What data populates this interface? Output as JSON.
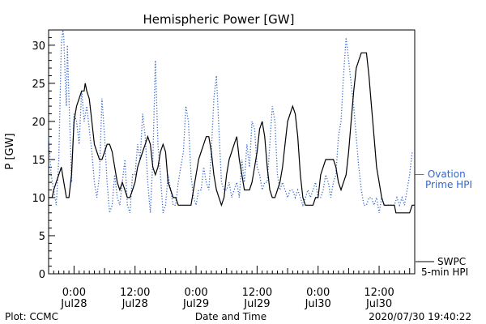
{
  "chart_data": {
    "type": "line",
    "title": "Hemispheric Power [GW]",
    "xlabel": "Date and Time",
    "ylabel": "P [GW]",
    "ylim": [
      0,
      32
    ],
    "yticks": [
      0,
      5,
      10,
      15,
      20,
      25,
      30
    ],
    "xlim_hours": [
      -5,
      67
    ],
    "x_ticks": [
      {
        "hour": 0,
        "time": "0:00",
        "date": "Jul28"
      },
      {
        "hour": 12,
        "time": "12:00",
        "date": "Jul28"
      },
      {
        "hour": 24,
        "time": "0:00",
        "date": "Jul29"
      },
      {
        "hour": 36,
        "time": "12:00",
        "date": "Jul29"
      },
      {
        "hour": 48,
        "time": "0:00",
        "date": "Jul30"
      },
      {
        "hour": 60,
        "time": "12:00",
        "date": "Jul30"
      }
    ],
    "series": [
      {
        "name": "SWPC 5-min HPI",
        "style": "solid",
        "color": "#000000",
        "points": [
          [
            -5,
            10
          ],
          [
            -4.3,
            10
          ],
          [
            -4,
            11
          ],
          [
            -3.5,
            12
          ],
          [
            -3,
            13
          ],
          [
            -2.5,
            14
          ],
          [
            -2,
            12
          ],
          [
            -1.5,
            10
          ],
          [
            -1,
            10
          ],
          [
            -0.5,
            13
          ],
          [
            0,
            20
          ],
          [
            0.5,
            22
          ],
          [
            1,
            23
          ],
          [
            1.5,
            24
          ],
          [
            2,
            24
          ],
          [
            2.2,
            25
          ],
          [
            2.5,
            24
          ],
          [
            3,
            23
          ],
          [
            3.5,
            20
          ],
          [
            4,
            17
          ],
          [
            4.5,
            16
          ],
          [
            5,
            15
          ],
          [
            5.5,
            15
          ],
          [
            6,
            16
          ],
          [
            6.5,
            17
          ],
          [
            7,
            17
          ],
          [
            7.5,
            16
          ],
          [
            8,
            14
          ],
          [
            8.5,
            12
          ],
          [
            9,
            11
          ],
          [
            9.5,
            12
          ],
          [
            10,
            11
          ],
          [
            10.5,
            10
          ],
          [
            11,
            10
          ],
          [
            11.5,
            11
          ],
          [
            12,
            12
          ],
          [
            12.5,
            14
          ],
          [
            13,
            15
          ],
          [
            13.5,
            16
          ],
          [
            14,
            17
          ],
          [
            14.5,
            18
          ],
          [
            15,
            17
          ],
          [
            15.5,
            14
          ],
          [
            16,
            13
          ],
          [
            16.5,
            14
          ],
          [
            17,
            16
          ],
          [
            17.5,
            17
          ],
          [
            18,
            16
          ],
          [
            18.5,
            12
          ],
          [
            19,
            11
          ],
          [
            19.5,
            10
          ],
          [
            20,
            10
          ],
          [
            20.5,
            9
          ],
          [
            21,
            9
          ],
          [
            22,
            9
          ],
          [
            23,
            9
          ],
          [
            23.5,
            11
          ],
          [
            24,
            13
          ],
          [
            24.5,
            15
          ],
          [
            25,
            16
          ],
          [
            25.5,
            17
          ],
          [
            26,
            18
          ],
          [
            26.5,
            18
          ],
          [
            27,
            16
          ],
          [
            27.5,
            13
          ],
          [
            28,
            11
          ],
          [
            28.5,
            10
          ],
          [
            29,
            9
          ],
          [
            29.5,
            10
          ],
          [
            30,
            13
          ],
          [
            30.5,
            15
          ],
          [
            31,
            16
          ],
          [
            31.5,
            17
          ],
          [
            32,
            18
          ],
          [
            32.5,
            15
          ],
          [
            33,
            13
          ],
          [
            33.5,
            11
          ],
          [
            34,
            11
          ],
          [
            34.5,
            11
          ],
          [
            35,
            12
          ],
          [
            35.5,
            14
          ],
          [
            36,
            16
          ],
          [
            36.5,
            19
          ],
          [
            37,
            20
          ],
          [
            37.5,
            18
          ],
          [
            38,
            14
          ],
          [
            38.5,
            11
          ],
          [
            39,
            10
          ],
          [
            39.5,
            10
          ],
          [
            40,
            11
          ],
          [
            40.5,
            12
          ],
          [
            41,
            14
          ],
          [
            41.5,
            17
          ],
          [
            42,
            20
          ],
          [
            42.5,
            21
          ],
          [
            43,
            22
          ],
          [
            43.5,
            21
          ],
          [
            44,
            18
          ],
          [
            44.5,
            13
          ],
          [
            45,
            10
          ],
          [
            45.5,
            9
          ],
          [
            46,
            9
          ],
          [
            47,
            9
          ],
          [
            47.5,
            10
          ],
          [
            48,
            10
          ],
          [
            48.5,
            13
          ],
          [
            49,
            14
          ],
          [
            49.5,
            15
          ],
          [
            50,
            15
          ],
          [
            50.5,
            15
          ],
          [
            51,
            15
          ],
          [
            51.5,
            14
          ],
          [
            52,
            12
          ],
          [
            52.5,
            11
          ],
          [
            53,
            12
          ],
          [
            53.5,
            13
          ],
          [
            54,
            16
          ],
          [
            54.5,
            20
          ],
          [
            55,
            24
          ],
          [
            55.5,
            27
          ],
          [
            56,
            28
          ],
          [
            56.5,
            29
          ],
          [
            57,
            29
          ],
          [
            57.5,
            29
          ],
          [
            58,
            26
          ],
          [
            58.5,
            22
          ],
          [
            59,
            18
          ],
          [
            59.5,
            14
          ],
          [
            60,
            12
          ],
          [
            60.5,
            10
          ],
          [
            61,
            9
          ],
          [
            62,
            9
          ],
          [
            63,
            9
          ],
          [
            63.3,
            8
          ],
          [
            64,
            8
          ],
          [
            65,
            8
          ],
          [
            66,
            8
          ],
          [
            66.5,
            9
          ],
          [
            67,
            9
          ]
        ]
      },
      {
        "name": "Ovation Prime HPI",
        "style": "dotted",
        "color": "#3366cc",
        "points": [
          [
            -5,
            18
          ],
          [
            -4.5,
            13
          ],
          [
            -4,
            11
          ],
          [
            -3.5,
            9
          ],
          [
            -3,
            15
          ],
          [
            -2.7,
            24
          ],
          [
            -2.5,
            30
          ],
          [
            -2.2,
            32
          ],
          [
            -2,
            31
          ],
          [
            -1.7,
            25
          ],
          [
            -1.5,
            22
          ],
          [
            -1.3,
            30
          ],
          [
            -1,
            23
          ],
          [
            -0.7,
            17
          ],
          [
            -0.5,
            12
          ],
          [
            0,
            21
          ],
          [
            0.5,
            20
          ],
          [
            1,
            17
          ],
          [
            1.5,
            24
          ],
          [
            2,
            20
          ],
          [
            2.5,
            22
          ],
          [
            3,
            19
          ],
          [
            3.5,
            16
          ],
          [
            4,
            12
          ],
          [
            4.5,
            10
          ],
          [
            5,
            13
          ],
          [
            5.5,
            23
          ],
          [
            6,
            18
          ],
          [
            6.5,
            12
          ],
          [
            7,
            8
          ],
          [
            7.5,
            9
          ],
          [
            8,
            13
          ],
          [
            8.5,
            10
          ],
          [
            9,
            9
          ],
          [
            9.5,
            12
          ],
          [
            10,
            15
          ],
          [
            10.5,
            9
          ],
          [
            11,
            8
          ],
          [
            11.5,
            13
          ],
          [
            12,
            13
          ],
          [
            12.5,
            17
          ],
          [
            13,
            15
          ],
          [
            13.5,
            21
          ],
          [
            14,
            18
          ],
          [
            14.5,
            12
          ],
          [
            15,
            8
          ],
          [
            15.5,
            15
          ],
          [
            16,
            28
          ],
          [
            16.5,
            17
          ],
          [
            17,
            13
          ],
          [
            17.5,
            8
          ],
          [
            18,
            9
          ],
          [
            18.5,
            13
          ],
          [
            19,
            11
          ],
          [
            19.5,
            9
          ],
          [
            20,
            9
          ],
          [
            20.5,
            12
          ],
          [
            21,
            14
          ],
          [
            21.5,
            16
          ],
          [
            22,
            22
          ],
          [
            22.5,
            20
          ],
          [
            23,
            13
          ],
          [
            23.5,
            10
          ],
          [
            24,
            9
          ],
          [
            24.5,
            11
          ],
          [
            25,
            11
          ],
          [
            25.5,
            14
          ],
          [
            26,
            12
          ],
          [
            26.5,
            11
          ],
          [
            27,
            16
          ],
          [
            27.5,
            23
          ],
          [
            28,
            26
          ],
          [
            28.5,
            19
          ],
          [
            29,
            12
          ],
          [
            29.5,
            11
          ],
          [
            30,
            11
          ],
          [
            30.5,
            12
          ],
          [
            31,
            10
          ],
          [
            31.5,
            11
          ],
          [
            32,
            12
          ],
          [
            32.5,
            10
          ],
          [
            33,
            15
          ],
          [
            33.5,
            12
          ],
          [
            34,
            17
          ],
          [
            34.5,
            14
          ],
          [
            35,
            20
          ],
          [
            35.5,
            19
          ],
          [
            36,
            14
          ],
          [
            36.5,
            13
          ],
          [
            37,
            11
          ],
          [
            37.5,
            12
          ],
          [
            38,
            12
          ],
          [
            38.5,
            17
          ],
          [
            39,
            22
          ],
          [
            39.5,
            20
          ],
          [
            40,
            13
          ],
          [
            40.5,
            11
          ],
          [
            41,
            12
          ],
          [
            41.5,
            11
          ],
          [
            42,
            10
          ],
          [
            42.5,
            11
          ],
          [
            43,
            11
          ],
          [
            43.5,
            10
          ],
          [
            44,
            11
          ],
          [
            44.5,
            10
          ],
          [
            45,
            9
          ],
          [
            45.5,
            10
          ],
          [
            46,
            11
          ],
          [
            46.5,
            10
          ],
          [
            47,
            11
          ],
          [
            47.5,
            12
          ],
          [
            48,
            10
          ],
          [
            48.5,
            10
          ],
          [
            49,
            11
          ],
          [
            49.5,
            13
          ],
          [
            50,
            12
          ],
          [
            50.5,
            10
          ],
          [
            51,
            12
          ],
          [
            51.5,
            13
          ],
          [
            52,
            18
          ],
          [
            52.5,
            20
          ],
          [
            53,
            26
          ],
          [
            53.5,
            31
          ],
          [
            54,
            28
          ],
          [
            54.5,
            25
          ],
          [
            55,
            22
          ],
          [
            55.5,
            18
          ],
          [
            56,
            14
          ],
          [
            56.5,
            11
          ],
          [
            57,
            9
          ],
          [
            57.5,
            9
          ],
          [
            58,
            10
          ],
          [
            58.5,
            10
          ],
          [
            59,
            9
          ],
          [
            59.5,
            10
          ],
          [
            60,
            8
          ],
          [
            60.5,
            10
          ],
          [
            61,
            9
          ],
          [
            62,
            9
          ],
          [
            63,
            9
          ],
          [
            63.5,
            10
          ],
          [
            64,
            9
          ],
          [
            64.5,
            10
          ],
          [
            65,
            9
          ],
          [
            65.5,
            11
          ],
          [
            66,
            13
          ],
          [
            66.5,
            16
          ]
        ]
      }
    ],
    "legend": {
      "position": "right",
      "ovation": [
        "— Ovation",
        "Prime HPI"
      ],
      "swpc": [
        "SWPC",
        "5-min HPI"
      ]
    }
  },
  "footer": {
    "plot_credit": "Plot: CCMC",
    "timestamp": "2020/07/30 19:40:22"
  },
  "colors": {
    "ovation": "#3366cc",
    "swpc": "#000000"
  }
}
